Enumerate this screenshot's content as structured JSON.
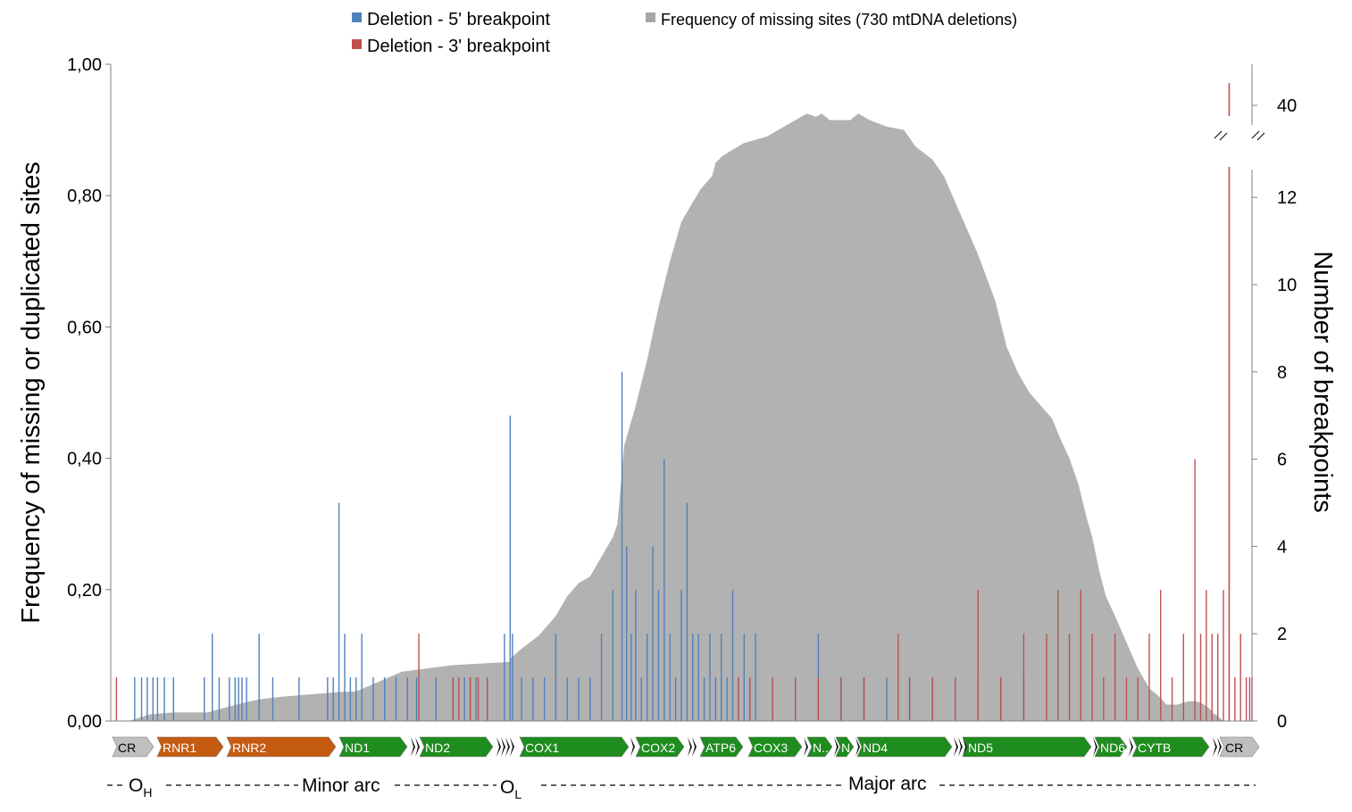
{
  "chart_data": {
    "type": "bar",
    "ylabel": "Frequency of missing or duplicated sites",
    "y2label": "Number of breakpoints",
    "y_ticks": [
      "0,00",
      "0,20",
      "0,40",
      "0,60",
      "0,80",
      "1,00"
    ],
    "ylim": [
      0,
      1
    ],
    "y2_ticks": [
      "0",
      "2",
      "4",
      "6",
      "8",
      "10",
      "12",
      "40"
    ],
    "y2_scale": "broken axis: 0 to 12.6, break marks, then about 40",
    "grid": false,
    "legend_position": "top",
    "legend": [
      {
        "label": "Deletion - 5' breakpoint",
        "color": "#4f81bd"
      },
      {
        "label": "Deletion - 3' breakpoint",
        "color": "#c0504d"
      },
      {
        "label": "Frequency  of missing sites (730 mtDNA deletions)",
        "color": "#a6a6a6"
      }
    ],
    "x_domain_note": "mtDNA position, genome order left to right, scaled 0-1",
    "area_series": {
      "name": "Frequency  of missing sites (730 mtDNA deletions)",
      "color": "#b2b2b2",
      "x": [
        0,
        0.016,
        0.034,
        0.055,
        0.085,
        0.11,
        0.13,
        0.15,
        0.17,
        0.185,
        0.2,
        0.215,
        0.255,
        0.3,
        0.35,
        0.35,
        0.36,
        0.375,
        0.39,
        0.4,
        0.41,
        0.42,
        0.43,
        0.44,
        0.444,
        0.45,
        0.46,
        0.47,
        0.48,
        0.49,
        0.5,
        0.51,
        0.517,
        0.527,
        0.53,
        0.536,
        0.545,
        0.555,
        0.565,
        0.575,
        0.585,
        0.595,
        0.605,
        0.61,
        0.618,
        0.623,
        0.63,
        0.638,
        0.648,
        0.655,
        0.665,
        0.68,
        0.695,
        0.705,
        0.72,
        0.73,
        0.745,
        0.76,
        0.775,
        0.785,
        0.795,
        0.805,
        0.815,
        0.825,
        0.832,
        0.84,
        0.848,
        0.855,
        0.86,
        0.866,
        0.872,
        0.88,
        0.89,
        0.9,
        0.91,
        0.92,
        0.925,
        0.93,
        0.935,
        0.94,
        0.945,
        0.95,
        0.955,
        0.958,
        0.962,
        0.965,
        0.967,
        0.968,
        0.975,
        0.982
      ],
      "values": [
        0.0,
        0.0,
        0.01,
        0.013,
        0.013,
        0.025,
        0.033,
        0.037,
        0.04,
        0.042,
        0.044,
        0.045,
        0.075,
        0.085,
        0.09,
        0.095,
        0.11,
        0.13,
        0.16,
        0.19,
        0.21,
        0.22,
        0.25,
        0.28,
        0.3,
        0.42,
        0.48,
        0.55,
        0.63,
        0.7,
        0.76,
        0.79,
        0.81,
        0.83,
        0.85,
        0.86,
        0.87,
        0.88,
        0.885,
        0.89,
        0.9,
        0.91,
        0.92,
        0.925,
        0.92,
        0.925,
        0.915,
        0.915,
        0.915,
        0.925,
        0.915,
        0.905,
        0.9,
        0.875,
        0.855,
        0.83,
        0.77,
        0.71,
        0.64,
        0.57,
        0.53,
        0.5,
        0.48,
        0.46,
        0.43,
        0.4,
        0.36,
        0.31,
        0.28,
        0.23,
        0.19,
        0.16,
        0.12,
        0.08,
        0.05,
        0.035,
        0.025,
        0.025,
        0.025,
        0.028,
        0.03,
        0.03,
        0.028,
        0.025,
        0.02,
        0.015,
        0.01,
        0.01,
        0.0,
        0.0
      ]
    },
    "bar_series": [
      {
        "name": "Deletion - 5' breakpoint",
        "color": "#4f81bd",
        "x": [
          0.021,
          0.027,
          0.032,
          0.037,
          0.041,
          0.047,
          0.055,
          0.082,
          0.089,
          0.095,
          0.104,
          0.109,
          0.112,
          0.115,
          0.119,
          0.13,
          0.142,
          0.165,
          0.19,
          0.195,
          0.2,
          0.205,
          0.21,
          0.215,
          0.22,
          0.23,
          0.24,
          0.25,
          0.26,
          0.268,
          0.285,
          0.3,
          0.305,
          0.31,
          0.315,
          0.32,
          0.33,
          0.345,
          0.35,
          0.352,
          0.36,
          0.37,
          0.38,
          0.39,
          0.4,
          0.41,
          0.42,
          0.43,
          0.44,
          0.448,
          0.452,
          0.456,
          0.46,
          0.465,
          0.47,
          0.475,
          0.48,
          0.485,
          0.49,
          0.495,
          0.5,
          0.505,
          0.51,
          0.515,
          0.52,
          0.525,
          0.53,
          0.535,
          0.54,
          0.545,
          0.55,
          0.555,
          0.56,
          0.565,
          0.58,
          0.6,
          0.62,
          0.64,
          0.66,
          0.68,
          0.7,
          0.72,
          0.74,
          0.76,
          0.78,
          0.8
        ],
        "values": [
          1,
          1,
          1,
          1,
          1,
          1,
          1,
          1,
          2,
          1,
          1,
          1,
          1,
          1,
          1,
          2,
          1,
          1,
          1,
          1,
          5,
          2,
          1,
          1,
          2,
          1,
          1,
          1,
          1,
          1,
          1,
          1,
          1,
          1,
          1,
          1,
          1,
          2,
          7,
          2,
          1,
          1,
          1,
          2,
          1,
          1,
          1,
          2,
          3,
          8,
          4,
          2,
          3,
          1,
          2,
          4,
          3,
          6,
          2,
          1,
          3,
          5,
          2,
          2,
          1,
          2,
          1,
          2,
          1,
          3,
          1,
          2,
          1,
          2,
          1,
          1,
          2,
          1,
          1,
          1,
          1,
          1,
          1,
          1,
          1,
          1
        ]
      },
      {
        "name": "Deletion - 3' breakpoint",
        "color": "#c0504d",
        "x": [
          0.005,
          0.27,
          0.3,
          0.305,
          0.315,
          0.322,
          0.33,
          0.55,
          0.56,
          0.58,
          0.6,
          0.62,
          0.64,
          0.66,
          0.69,
          0.7,
          0.72,
          0.74,
          0.76,
          0.78,
          0.8,
          0.82,
          0.83,
          0.84,
          0.85,
          0.86,
          0.87,
          0.88,
          0.89,
          0.9,
          0.91,
          0.92,
          0.93,
          0.94,
          0.95,
          0.955,
          0.96,
          0.965,
          0.97,
          0.975,
          0.98,
          0.985,
          0.99,
          0.995,
          0.998,
          1.0
        ],
        "values": [
          1,
          2,
          1,
          1,
          1,
          1,
          1,
          1,
          1,
          1,
          1,
          1,
          1,
          1,
          2,
          1,
          1,
          1,
          3,
          1,
          2,
          2,
          3,
          2,
          3,
          2,
          1,
          2,
          1,
          1,
          2,
          3,
          1,
          2,
          6,
          2,
          3,
          2,
          2,
          3,
          40,
          1,
          2,
          1,
          1,
          1
        ]
      }
    ],
    "gene_track": [
      {
        "label": "CR",
        "color": "#bfbfbf",
        "text_color": "#000000"
      },
      {
        "label": "RNR1",
        "color": "#c55a11",
        "text_color": "#ffffff"
      },
      {
        "label": "RNR2",
        "color": "#c55a11",
        "text_color": "#ffffff"
      },
      {
        "label": "ND1",
        "color": "#1e8c1e",
        "text_color": "#ffffff"
      },
      {
        "label": "ND2",
        "color": "#1e8c1e",
        "text_color": "#ffffff"
      },
      {
        "label": "COX1",
        "color": "#1e8c1e",
        "text_color": "#ffffff"
      },
      {
        "label": "COX2",
        "color": "#1e8c1e",
        "text_color": "#ffffff"
      },
      {
        "label": "ATP6",
        "color": "#1e8c1e",
        "text_color": "#ffffff"
      },
      {
        "label": "COX3",
        "color": "#1e8c1e",
        "text_color": "#ffffff"
      },
      {
        "label": "N..",
        "color": "#1e8c1e",
        "text_color": "#ffffff"
      },
      {
        "label": "N.",
        "color": "#1e8c1e",
        "text_color": "#ffffff"
      },
      {
        "label": "ND4",
        "color": "#1e8c1e",
        "text_color": "#ffffff"
      },
      {
        "label": "ND5",
        "color": "#1e8c1e",
        "text_color": "#ffffff"
      },
      {
        "label": "ND6",
        "color": "#1e8c1e",
        "text_color": "#ffffff"
      },
      {
        "label": "CYTB",
        "color": "#1e8c1e",
        "text_color": "#ffffff"
      },
      {
        "label": "CR",
        "color": "#bfbfbf",
        "text_color": "#000000"
      }
    ],
    "arc_labels": [
      {
        "label": "O",
        "sub": "H"
      },
      {
        "label": "Minor arc"
      },
      {
        "label": "O",
        "sub": "L"
      },
      {
        "label": "Major arc"
      }
    ]
  }
}
